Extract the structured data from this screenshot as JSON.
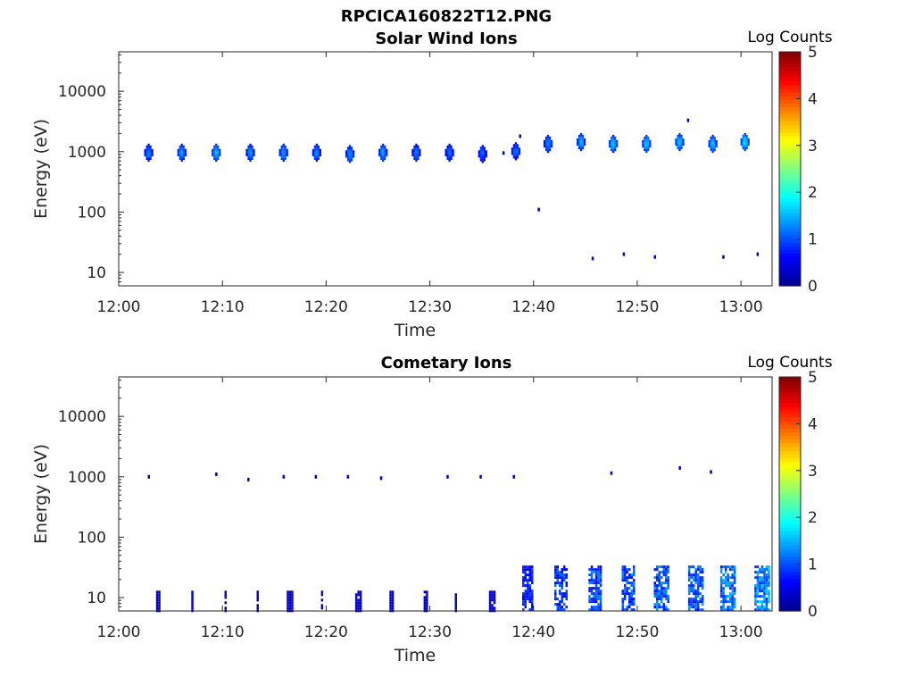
{
  "figure": {
    "title": "RPCICA160822T12.PNG"
  },
  "colormap": [
    "#00008f",
    "#0000ff",
    "#0080ff",
    "#00ffff",
    "#80ff80",
    "#ffff00",
    "#ff8000",
    "#ff0000",
    "#800000"
  ],
  "chart_data": [
    {
      "type": "heatmap",
      "title": "Solar Wind Ions",
      "xlabel": "Time",
      "ylabel": "Energy (eV)",
      "y_scale": "log",
      "ylim": [
        6,
        45000
      ],
      "xlim": [
        "12:00",
        "13:03"
      ],
      "x_ticks": [
        "12:00",
        "12:10",
        "12:20",
        "12:30",
        "12:40",
        "12:50",
        "13:00"
      ],
      "y_ticks": [
        "10",
        "100",
        "1000",
        "10000"
      ],
      "colorbar": {
        "label": "Log Counts",
        "range": [
          0,
          5
        ],
        "ticks": [
          "0",
          "1",
          "2",
          "3",
          "4",
          "5"
        ]
      },
      "blobs": [
        {
          "t": 2.8,
          "e": 1000,
          "log_counts": 1.2
        },
        {
          "t": 6.0,
          "e": 1000,
          "log_counts": 1.4
        },
        {
          "t": 9.3,
          "e": 1000,
          "log_counts": 1.5
        },
        {
          "t": 12.6,
          "e": 1000,
          "log_counts": 1.3
        },
        {
          "t": 15.8,
          "e": 1000,
          "log_counts": 1.4
        },
        {
          "t": 19.0,
          "e": 1000,
          "log_counts": 1.3
        },
        {
          "t": 22.2,
          "e": 950,
          "log_counts": 1.3
        },
        {
          "t": 25.4,
          "e": 1000,
          "log_counts": 1.4
        },
        {
          "t": 28.6,
          "e": 1000,
          "log_counts": 1.2
        },
        {
          "t": 31.8,
          "e": 1000,
          "log_counts": 1.1
        },
        {
          "t": 35.0,
          "e": 950,
          "log_counts": 1.1
        },
        {
          "t": 38.2,
          "e": 1050,
          "log_counts": 1.2
        },
        {
          "t": 41.3,
          "e": 1400,
          "log_counts": 1.3
        },
        {
          "t": 44.5,
          "e": 1500,
          "log_counts": 1.5
        },
        {
          "t": 47.6,
          "e": 1400,
          "log_counts": 1.6
        },
        {
          "t": 50.8,
          "e": 1400,
          "log_counts": 1.6
        },
        {
          "t": 54.0,
          "e": 1500,
          "log_counts": 1.6
        },
        {
          "t": 57.2,
          "e": 1400,
          "log_counts": 1.5
        },
        {
          "t": 60.3,
          "e": 1500,
          "log_counts": 1.7
        }
      ],
      "sparse": [
        {
          "t": 38.6,
          "e": 1800,
          "log_counts": 0.3
        },
        {
          "t": 40.4,
          "e": 110,
          "log_counts": 0.2
        },
        {
          "t": 45.6,
          "e": 17,
          "log_counts": 0.2
        },
        {
          "t": 48.6,
          "e": 20,
          "log_counts": 0.2
        },
        {
          "t": 51.6,
          "e": 18,
          "log_counts": 0.2
        },
        {
          "t": 58.2,
          "e": 18,
          "log_counts": 0.2
        },
        {
          "t": 61.5,
          "e": 20,
          "log_counts": 0.2
        },
        {
          "t": 54.8,
          "e": 3300,
          "log_counts": 0.3
        },
        {
          "t": 37.0,
          "e": 950,
          "log_counts": 0.2
        }
      ]
    },
    {
      "type": "heatmap",
      "title": "Cometary Ions",
      "xlabel": "Time",
      "ylabel": "Energy (eV)",
      "y_scale": "log",
      "ylim": [
        6,
        45000
      ],
      "xlim": [
        "12:00",
        "13:03"
      ],
      "x_ticks": [
        "12:00",
        "12:10",
        "12:20",
        "12:30",
        "12:40",
        "12:50",
        "13:00"
      ],
      "y_ticks": [
        "10",
        "100",
        "1000",
        "10000"
      ],
      "colorbar": {
        "label": "Log Counts",
        "range": [
          0,
          5
        ],
        "ticks": [
          "0",
          "1",
          "2",
          "3",
          "4",
          "5"
        ]
      },
      "low_energy": [
        {
          "t": 3.6,
          "width": 0.4,
          "log_counts": 0.3
        },
        {
          "t": 7.0,
          "width": 0.2,
          "log_counts": 0.2
        },
        {
          "t": 10.2,
          "width": 0.2,
          "log_counts": 0.2
        },
        {
          "t": 13.3,
          "width": 0.2,
          "log_counts": 0.2
        },
        {
          "t": 16.2,
          "width": 0.6,
          "log_counts": 0.3
        },
        {
          "t": 19.5,
          "width": 0.2,
          "log_counts": 0.2
        },
        {
          "t": 22.8,
          "width": 0.6,
          "log_counts": 0.3
        },
        {
          "t": 26.1,
          "width": 0.4,
          "log_counts": 0.3
        },
        {
          "t": 29.4,
          "width": 0.4,
          "log_counts": 0.3
        },
        {
          "t": 32.4,
          "width": 0.2,
          "log_counts": 0.2
        },
        {
          "t": 35.7,
          "width": 0.5,
          "log_counts": 0.3
        },
        {
          "t": 38.9,
          "width": 0.9,
          "log_counts": 0.8
        },
        {
          "t": 42.0,
          "width": 1.1,
          "log_counts": 0.9
        },
        {
          "t": 45.3,
          "width": 1.1,
          "log_counts": 1.0
        },
        {
          "t": 48.5,
          "width": 1.2,
          "log_counts": 1.0
        },
        {
          "t": 51.6,
          "width": 1.3,
          "log_counts": 1.1
        },
        {
          "t": 54.9,
          "width": 1.3,
          "log_counts": 1.1
        },
        {
          "t": 58.0,
          "width": 1.3,
          "log_counts": 1.2
        },
        {
          "t": 61.3,
          "width": 1.3,
          "log_counts": 1.3
        }
      ],
      "sparse": [
        {
          "t": 2.8,
          "e": 1000,
          "log_counts": 0.2
        },
        {
          "t": 9.3,
          "e": 1100,
          "log_counts": 0.2
        },
        {
          "t": 12.4,
          "e": 900,
          "log_counts": 0.2
        },
        {
          "t": 15.8,
          "e": 1000,
          "log_counts": 0.2
        },
        {
          "t": 18.9,
          "e": 1000,
          "log_counts": 0.2
        },
        {
          "t": 22.0,
          "e": 1000,
          "log_counts": 0.2
        },
        {
          "t": 25.2,
          "e": 950,
          "log_counts": 0.2
        },
        {
          "t": 31.6,
          "e": 1000,
          "log_counts": 0.2
        },
        {
          "t": 34.8,
          "e": 1000,
          "log_counts": 0.2
        },
        {
          "t": 38.0,
          "e": 1000,
          "log_counts": 0.2
        },
        {
          "t": 47.4,
          "e": 1150,
          "log_counts": 0.3
        },
        {
          "t": 54.0,
          "e": 1400,
          "log_counts": 0.2
        },
        {
          "t": 57.0,
          "e": 1200,
          "log_counts": 0.2
        }
      ]
    }
  ]
}
